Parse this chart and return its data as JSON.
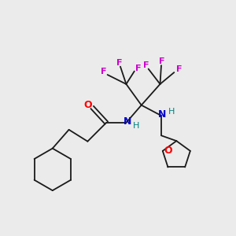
{
  "background_color": "#ebebeb",
  "bond_color": "#1a1a1a",
  "bond_width": 1.3,
  "atom_colors": {
    "O": "#ff0000",
    "N": "#0000cc",
    "F": "#cc00cc",
    "H_amide": "#008080",
    "H_amine": "#008080"
  },
  "fig_size": [
    3.0,
    3.0
  ],
  "dpi": 100,
  "xlim": [
    0,
    10
  ],
  "ylim": [
    0,
    10
  ]
}
